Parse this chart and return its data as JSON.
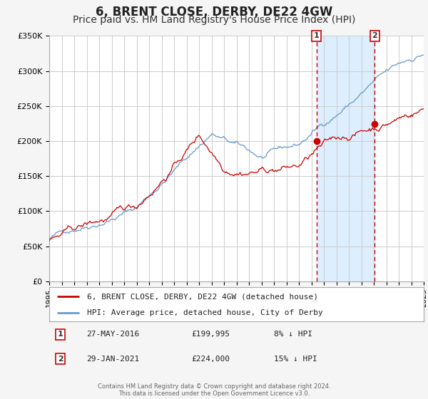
{
  "title": "6, BRENT CLOSE, DERBY, DE22 4GW",
  "subtitle": "Price paid vs. HM Land Registry's House Price Index (HPI)",
  "legend_line1": "6, BRENT CLOSE, DERBY, DE22 4GW (detached house)",
  "legend_line2": "HPI: Average price, detached house, City of Derby",
  "annotation1_label": "1",
  "annotation1_date": "27-MAY-2016",
  "annotation1_price": "£199,995",
  "annotation1_hpi": "8% ↓ HPI",
  "annotation1_year": 2016.41,
  "annotation1_value": 199995,
  "annotation2_label": "2",
  "annotation2_date": "29-JAN-2021",
  "annotation2_price": "£224,000",
  "annotation2_hpi": "15% ↓ HPI",
  "annotation2_year": 2021.08,
  "annotation2_value": 224000,
  "xmin": 1995,
  "xmax": 2025,
  "ymin": 0,
  "ymax": 350000,
  "yticks": [
    0,
    50000,
    100000,
    150000,
    200000,
    250000,
    300000,
    350000
  ],
  "ytick_labels": [
    "£0",
    "£50K",
    "£100K",
    "£150K",
    "£200K",
    "£250K",
    "£300K",
    "£350K"
  ],
  "red_color": "#cc0000",
  "blue_color": "#6699cc",
  "background_color": "#f5f5f5",
  "plot_bg_color": "#ffffff",
  "shade_color": "#ddeeff",
  "footer": "Contains HM Land Registry data © Crown copyright and database right 2024.\nThis data is licensed under the Open Government Licence v3.0.",
  "title_fontsize": 12,
  "subtitle_fontsize": 10
}
